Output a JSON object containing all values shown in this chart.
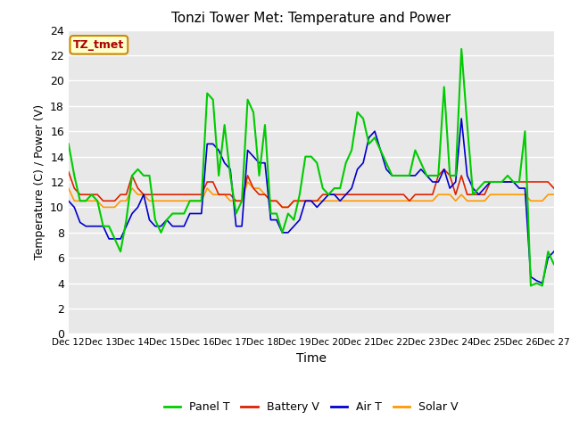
{
  "title": "Tonzi Tower Met: Temperature and Power",
  "xlabel": "Time",
  "ylabel": "Temperature (C) / Power (V)",
  "ylim": [
    0,
    24
  ],
  "yticks": [
    0,
    2,
    4,
    6,
    8,
    10,
    12,
    14,
    16,
    18,
    20,
    22,
    24
  ],
  "xtick_labels": [
    "Dec 12",
    "Dec 13",
    "Dec 14",
    "Dec 15",
    "Dec 16",
    "Dec 17",
    "Dec 18",
    "Dec 19",
    "Dec 20",
    "Dec 21",
    "Dec 22",
    "Dec 23",
    "Dec 24",
    "Dec 25",
    "Dec 26",
    "Dec 27"
  ],
  "annotation_text": "TZ_tmet",
  "annotation_color": "#aa0000",
  "annotation_bg": "#ffffcc",
  "annotation_edge": "#cc8800",
  "bg_color": "#e8e8e8",
  "panel_t_color": "#00cc00",
  "battery_v_color": "#dd2200",
  "air_t_color": "#0000cc",
  "solar_v_color": "#ff9900",
  "panel_t": [
    15.0,
    12.5,
    10.5,
    10.5,
    11.0,
    10.5,
    8.5,
    8.5,
    7.5,
    6.5,
    9.0,
    12.5,
    13.0,
    12.5,
    12.5,
    9.0,
    8.0,
    9.0,
    9.5,
    9.5,
    9.5,
    10.5,
    10.5,
    10.5,
    19.0,
    18.5,
    12.5,
    16.5,
    12.5,
    9.5,
    10.5,
    18.5,
    17.5,
    12.5,
    16.5,
    9.5,
    9.5,
    8.0,
    9.5,
    9.0,
    11.0,
    14.0,
    14.0,
    13.5,
    11.5,
    11.0,
    11.5,
    11.5,
    13.5,
    14.5,
    17.5,
    17.0,
    15.0,
    15.5,
    14.5,
    13.5,
    12.5,
    12.5,
    12.5,
    12.5,
    14.5,
    13.5,
    12.5,
    12.5,
    12.5,
    19.5,
    12.5,
    12.5,
    22.5,
    16.5,
    11.0,
    11.5,
    12.0,
    12.0,
    12.0,
    12.0,
    12.5,
    12.0,
    12.0,
    16.0,
    3.8,
    4.0,
    3.8,
    6.5,
    5.5
  ],
  "battery_v": [
    12.8,
    11.5,
    11.0,
    11.0,
    11.0,
    11.0,
    10.5,
    10.5,
    10.5,
    11.0,
    11.0,
    12.5,
    11.5,
    11.0,
    11.0,
    11.0,
    11.0,
    11.0,
    11.0,
    11.0,
    11.0,
    11.0,
    11.0,
    11.0,
    12.0,
    12.0,
    11.0,
    11.0,
    11.0,
    10.5,
    10.5,
    12.5,
    11.5,
    11.0,
    11.0,
    10.5,
    10.5,
    10.0,
    10.0,
    10.5,
    10.5,
    10.5,
    10.5,
    10.5,
    11.0,
    11.0,
    11.0,
    11.0,
    11.0,
    11.0,
    11.0,
    11.0,
    11.0,
    11.0,
    11.0,
    11.0,
    11.0,
    11.0,
    11.0,
    10.5,
    11.0,
    11.0,
    11.0,
    11.0,
    12.5,
    13.0,
    12.5,
    11.0,
    12.5,
    11.0,
    11.0,
    11.0,
    11.0,
    12.0,
    12.0,
    12.0,
    12.0,
    12.0,
    12.0,
    12.0,
    12.0,
    12.0,
    12.0,
    12.0,
    11.5
  ],
  "air_t": [
    10.5,
    10.0,
    8.8,
    8.5,
    8.5,
    8.5,
    8.5,
    7.5,
    7.5,
    7.5,
    8.5,
    9.5,
    10.0,
    11.0,
    9.0,
    8.5,
    8.5,
    9.0,
    8.5,
    8.5,
    8.5,
    9.5,
    9.5,
    9.5,
    15.0,
    15.0,
    14.5,
    13.5,
    13.0,
    8.5,
    8.5,
    14.5,
    14.0,
    13.5,
    13.5,
    9.0,
    9.0,
    8.0,
    8.0,
    8.5,
    9.0,
    10.5,
    10.5,
    10.0,
    10.5,
    11.0,
    11.0,
    10.5,
    11.0,
    11.5,
    13.0,
    13.5,
    15.5,
    16.0,
    14.5,
    13.0,
    12.5,
    12.5,
    12.5,
    12.5,
    12.5,
    13.0,
    12.5,
    12.0,
    12.0,
    13.0,
    11.5,
    12.0,
    17.0,
    12.5,
    11.5,
    11.0,
    11.5,
    12.0,
    12.0,
    12.0,
    12.0,
    12.0,
    11.5,
    11.5,
    4.5,
    4.2,
    4.0,
    6.0,
    6.5
  ],
  "solar_v": [
    11.5,
    10.5,
    10.5,
    10.5,
    10.5,
    10.5,
    10.0,
    10.0,
    10.0,
    10.5,
    10.5,
    11.5,
    11.0,
    11.0,
    10.5,
    10.5,
    10.5,
    10.5,
    10.5,
    10.5,
    10.5,
    10.5,
    10.5,
    10.5,
    11.5,
    11.0,
    11.0,
    11.0,
    10.5,
    10.5,
    10.5,
    12.0,
    11.5,
    11.5,
    11.0,
    10.5,
    10.5,
    10.0,
    10.0,
    10.5,
    10.5,
    10.5,
    10.5,
    10.5,
    10.5,
    10.5,
    10.5,
    10.5,
    10.5,
    10.5,
    10.5,
    10.5,
    10.5,
    10.5,
    10.5,
    10.5,
    10.5,
    10.5,
    10.5,
    10.5,
    10.5,
    10.5,
    10.5,
    10.5,
    11.0,
    11.0,
    11.0,
    10.5,
    11.0,
    10.5,
    10.5,
    10.5,
    10.5,
    11.0,
    11.0,
    11.0,
    11.0,
    11.0,
    11.0,
    11.0,
    10.5,
    10.5,
    10.5,
    11.0,
    11.0
  ]
}
